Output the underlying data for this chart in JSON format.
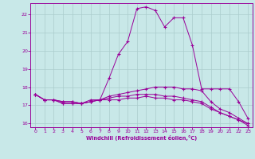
{
  "xlabel": "Windchill (Refroidissement éolien,°C)",
  "ylabel": "",
  "bg_color": "#c8e8e8",
  "line_color": "#990099",
  "grid_color": "#aacccc",
  "xlim": [
    -0.5,
    23.5
  ],
  "ylim": [
    15.8,
    22.6
  ],
  "xticks": [
    0,
    1,
    2,
    3,
    4,
    5,
    6,
    7,
    8,
    9,
    10,
    11,
    12,
    13,
    14,
    15,
    16,
    17,
    18,
    19,
    20,
    21,
    22,
    23
  ],
  "yticks": [
    16,
    17,
    18,
    19,
    20,
    21,
    22
  ],
  "line1_x": [
    0,
    1,
    2,
    3,
    4,
    5,
    6,
    7,
    8,
    9,
    10,
    11,
    12,
    13,
    14,
    15,
    16,
    17,
    18,
    19,
    20,
    21,
    22,
    23
  ],
  "line1_y": [
    17.6,
    17.3,
    17.3,
    17.1,
    17.1,
    17.1,
    17.2,
    17.3,
    18.5,
    19.8,
    20.5,
    22.3,
    22.4,
    22.2,
    21.3,
    21.8,
    21.8,
    20.3,
    17.9,
    17.9,
    17.9,
    17.9,
    17.2,
    16.3
  ],
  "line2_x": [
    0,
    1,
    2,
    3,
    4,
    5,
    6,
    7,
    8,
    9,
    10,
    11,
    12,
    13,
    14,
    15,
    16,
    17,
    18,
    19,
    20,
    21,
    22,
    23
  ],
  "line2_y": [
    17.6,
    17.3,
    17.3,
    17.2,
    17.2,
    17.1,
    17.3,
    17.3,
    17.5,
    17.6,
    17.7,
    17.8,
    17.9,
    18.0,
    18.0,
    18.0,
    17.9,
    17.9,
    17.8,
    17.2,
    16.8,
    16.6,
    16.3,
    16.0
  ],
  "line3_x": [
    0,
    1,
    2,
    3,
    4,
    5,
    6,
    7,
    8,
    9,
    10,
    11,
    12,
    13,
    14,
    15,
    16,
    17,
    18,
    19,
    20,
    21,
    22,
    23
  ],
  "line3_y": [
    17.6,
    17.3,
    17.3,
    17.2,
    17.2,
    17.1,
    17.2,
    17.3,
    17.4,
    17.5,
    17.5,
    17.6,
    17.6,
    17.6,
    17.5,
    17.5,
    17.4,
    17.3,
    17.2,
    16.9,
    16.6,
    16.4,
    16.2,
    16.0
  ],
  "line4_x": [
    0,
    1,
    2,
    3,
    4,
    5,
    6,
    7,
    8,
    9,
    10,
    11,
    12,
    13,
    14,
    15,
    16,
    17,
    18,
    19,
    20,
    21,
    22,
    23
  ],
  "line4_y": [
    17.6,
    17.3,
    17.3,
    17.1,
    17.1,
    17.1,
    17.2,
    17.3,
    17.3,
    17.3,
    17.4,
    17.4,
    17.5,
    17.4,
    17.4,
    17.3,
    17.3,
    17.2,
    17.1,
    16.8,
    16.6,
    16.4,
    16.2,
    15.9
  ]
}
